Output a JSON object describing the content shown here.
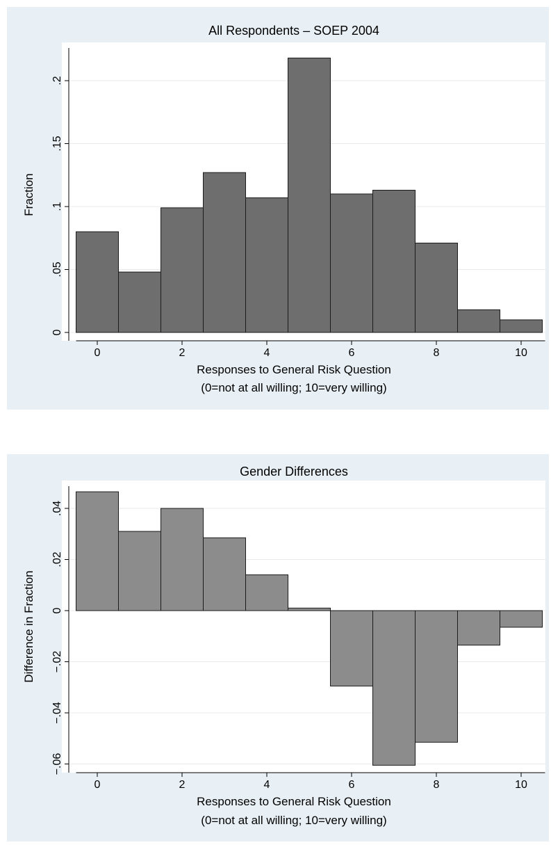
{
  "charts": [
    {
      "title": "All Respondents – SOEP 2004",
      "xlabel": "Responses to General Risk Question",
      "xlabel2": "(0=not at all willing; 10=very willing)",
      "ylabel": "Fraction",
      "x_ticks": [
        "0",
        "2",
        "4",
        "6",
        "8",
        "10"
      ],
      "y_ticks": [
        "0",
        ".05",
        ".1",
        ".15",
        ".2"
      ]
    },
    {
      "title": "Gender Differences",
      "xlabel": "Responses to General Risk Question",
      "xlabel2": "(0=not at all willing; 10=very willing)",
      "ylabel": "Difference in Fraction",
      "x_ticks": [
        "0",
        "2",
        "4",
        "6",
        "8",
        "10"
      ],
      "y_ticks": [
        "−.06",
        "−.04",
        "−.02",
        "0",
        ".02",
        ".04"
      ]
    }
  ],
  "chart_data": [
    {
      "type": "bar",
      "title": "All Respondents – SOEP 2004",
      "xlabel": "Responses to General Risk Question (0=not at all willing; 10=very willing)",
      "ylabel": "Fraction",
      "categories": [
        0,
        1,
        2,
        3,
        4,
        5,
        6,
        7,
        8,
        9,
        10
      ],
      "values": [
        0.08,
        0.048,
        0.099,
        0.127,
        0.107,
        0.218,
        0.11,
        0.113,
        0.071,
        0.018,
        0.01
      ],
      "xlim": [
        -0.5,
        10.5
      ],
      "ylim": [
        0,
        0.22
      ],
      "x_tick_values": [
        0,
        2,
        4,
        6,
        8,
        10
      ],
      "y_tick_values": [
        0,
        0.05,
        0.1,
        0.15,
        0.2
      ],
      "grid": true,
      "bar_color": "#6e6e6e",
      "background_color": "#e9f0f5"
    },
    {
      "type": "bar",
      "title": "Gender Differences",
      "xlabel": "Responses to General Risk Question (0=not at all willing; 10=very willing)",
      "ylabel": "Difference in Fraction",
      "categories": [
        0,
        1,
        2,
        3,
        4,
        5,
        6,
        7,
        8,
        9,
        10
      ],
      "values": [
        0.0465,
        0.031,
        0.04,
        0.0285,
        0.014,
        0.001,
        -0.0295,
        -0.0605,
        -0.0515,
        -0.0135,
        -0.0065
      ],
      "xlim": [
        -0.5,
        10.5
      ],
      "ylim": [
        -0.06,
        0.04
      ],
      "x_tick_values": [
        0,
        2,
        4,
        6,
        8,
        10
      ],
      "y_tick_values": [
        -0.06,
        -0.04,
        -0.02,
        0,
        0.02,
        0.04
      ],
      "grid": true,
      "bar_color": "#8c8c8c",
      "background_color": "#e9f0f5"
    }
  ]
}
